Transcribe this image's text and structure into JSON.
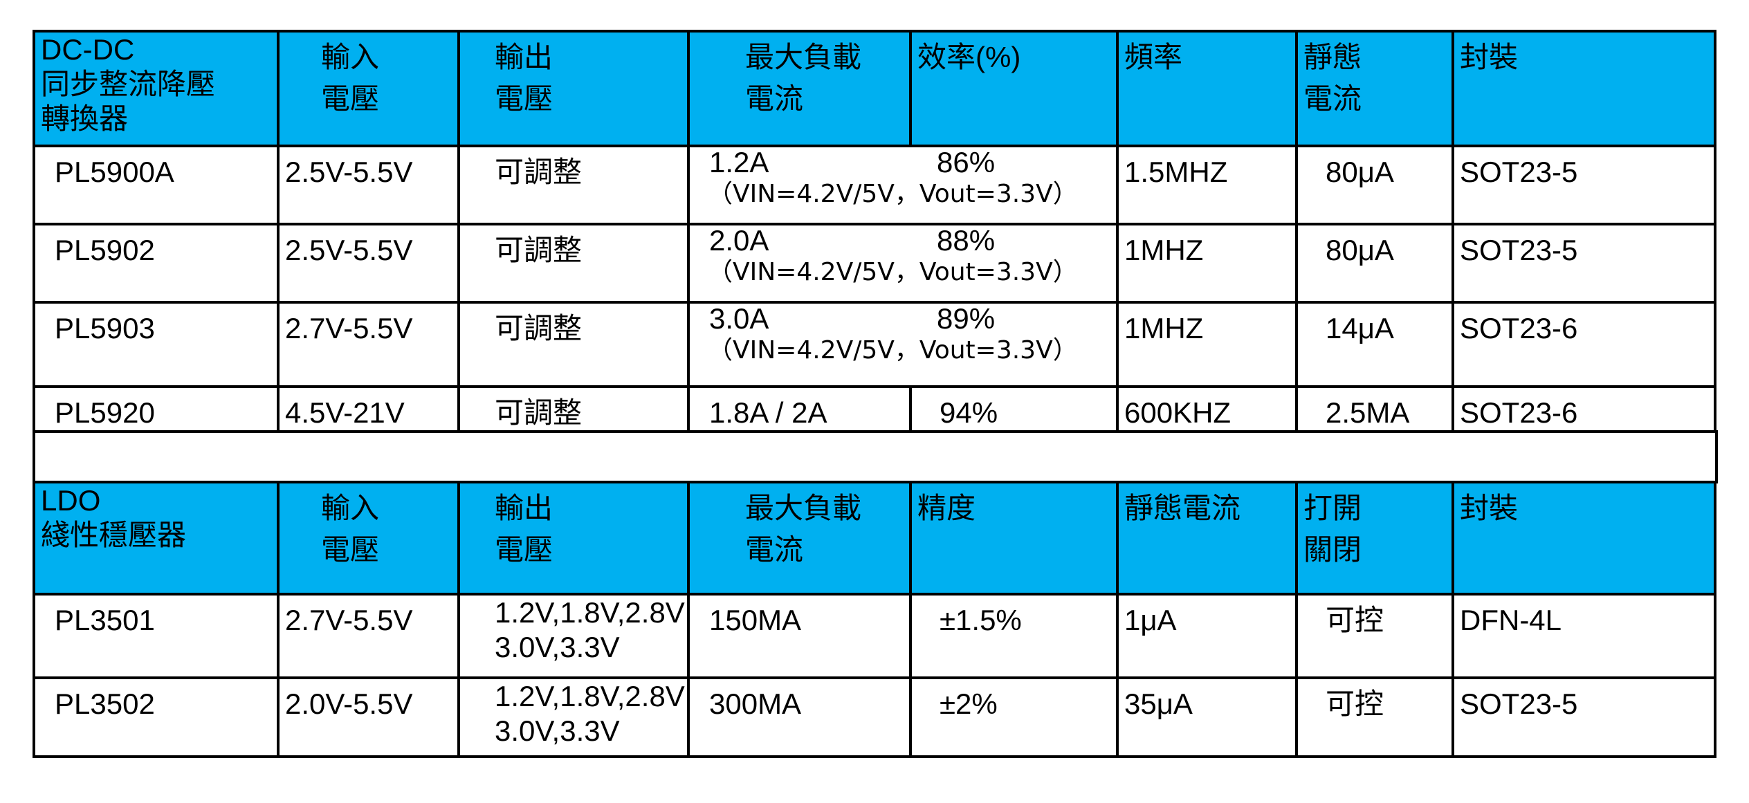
{
  "sections": [
    {
      "header": [
        "DC-DC\n同步整流降壓\n轉換器",
        "輸入\n電壓",
        "輸出\n電壓",
        "最大負載\n電流",
        "效率(%)",
        "頻率",
        "靜態\n電流",
        "封裝"
      ],
      "rows": [
        {
          "cells": [
            "PL5900A",
            "2.5V-5.5V",
            "可調整",
            "1.2A",
            "86%",
            "1.5MHZ",
            "80μA",
            "SOT23-5"
          ],
          "note": "（VIN=4.2V/5V，Vout=3.3V）"
        },
        {
          "cells": [
            "PL5902",
            "2.5V-5.5V",
            "可調整",
            "2.0A",
            "88%",
            "1MHZ",
            "80μA",
            "SOT23-5"
          ],
          "note": "（VIN=4.2V/5V，Vout=3.3V）"
        },
        {
          "cells": [
            "PL5903",
            "2.7V-5.5V",
            "可調整",
            "3.0A",
            "89%",
            "1MHZ",
            "14μA",
            "SOT23-6"
          ],
          "note": "（VIN=4.2V/5V，Vout=3.3V）"
        },
        {
          "cells": [
            "PL5920",
            "4.5V-21V",
            "可調整",
            "1.8A / 2A",
            "94%",
            "600KHZ",
            "2.5MA",
            "SOT23-6"
          ]
        }
      ]
    },
    {
      "header": [
        "LDO\n綫性穩壓器",
        "輸入\n電壓",
        "輸出\n電壓",
        "最大負載\n電流",
        "精度",
        "靜態電流",
        "打開\n關閉",
        "封裝"
      ],
      "rows": [
        {
          "cells": [
            "PL3501",
            "2.7V-5.5V",
            "1.2V,1.8V,2.8V\n3.0V,3.3V",
            "150MA",
            "±1.5%",
            "1μA",
            "可控",
            "DFN-4L"
          ]
        },
        {
          "cells": [
            "PL3502",
            "2.0V-5.5V",
            "1.2V,1.8V,2.8V\n3.0V,3.3V",
            "300MA",
            "±2%",
            "35μA",
            "可控",
            "SOT23-5"
          ]
        }
      ]
    }
  ]
}
